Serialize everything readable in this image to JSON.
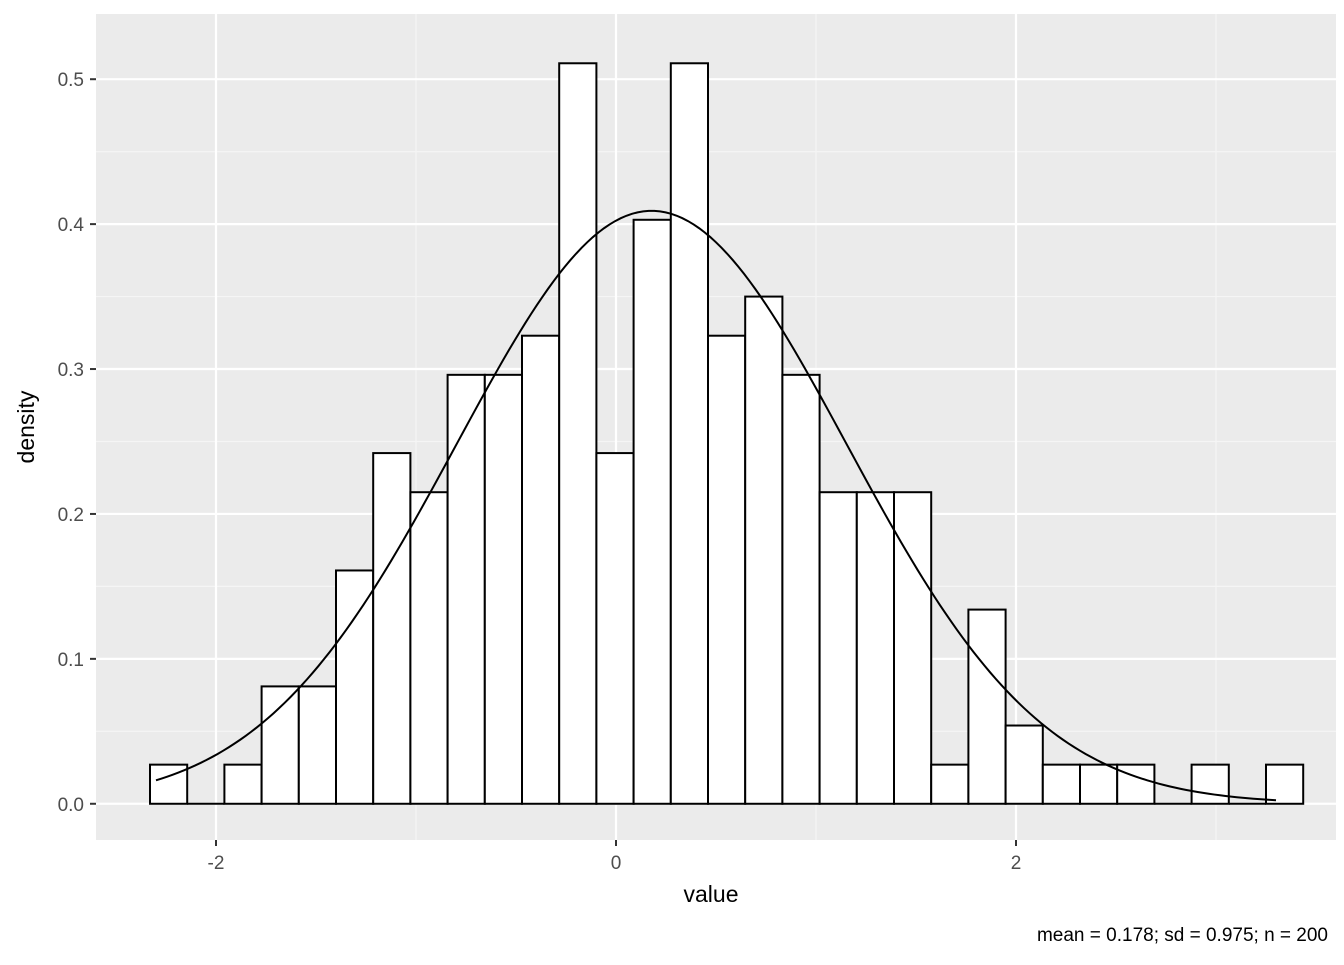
{
  "chart_data": {
    "type": "bar",
    "subtype": "histogram-with-density-curve",
    "xlabel": "value",
    "ylabel": "density",
    "caption": "mean = 0.178; sd = 0.975; n = 200",
    "xlim": [
      -2.6,
      3.6
    ],
    "ylim": [
      -0.025,
      0.545
    ],
    "x_ticks": [
      -2,
      0,
      2
    ],
    "y_ticks": [
      0.0,
      0.1,
      0.2,
      0.3,
      0.4,
      0.5
    ],
    "x_tick_labels": [
      "-2",
      "0",
      "2"
    ],
    "y_tick_labels": [
      "0.0",
      "0.1",
      "0.2",
      "0.3",
      "0.4",
      "0.5"
    ],
    "grid": true,
    "bin_start": -2.33,
    "bin_width": 0.186,
    "bins": [
      {
        "x0": -2.33,
        "x1": -2.144,
        "density": 0.027
      },
      {
        "x0": -2.144,
        "x1": -1.958,
        "density": 0.0
      },
      {
        "x0": -1.958,
        "x1": -1.772,
        "density": 0.027
      },
      {
        "x0": -1.772,
        "x1": -1.586,
        "density": 0.081
      },
      {
        "x0": -1.586,
        "x1": -1.4,
        "density": 0.081
      },
      {
        "x0": -1.4,
        "x1": -1.214,
        "density": 0.161
      },
      {
        "x0": -1.214,
        "x1": -1.028,
        "density": 0.242
      },
      {
        "x0": -1.028,
        "x1": -0.842,
        "density": 0.215
      },
      {
        "x0": -0.842,
        "x1": -0.656,
        "density": 0.296
      },
      {
        "x0": -0.656,
        "x1": -0.47,
        "density": 0.296
      },
      {
        "x0": -0.47,
        "x1": -0.284,
        "density": 0.323
      },
      {
        "x0": -0.284,
        "x1": -0.098,
        "density": 0.511
      },
      {
        "x0": -0.098,
        "x1": 0.088,
        "density": 0.242
      },
      {
        "x0": 0.088,
        "x1": 0.274,
        "density": 0.403
      },
      {
        "x0": 0.274,
        "x1": 0.46,
        "density": 0.511
      },
      {
        "x0": 0.46,
        "x1": 0.646,
        "density": 0.323
      },
      {
        "x0": 0.646,
        "x1": 0.832,
        "density": 0.35
      },
      {
        "x0": 0.832,
        "x1": 1.018,
        "density": 0.296
      },
      {
        "x0": 1.018,
        "x1": 1.204,
        "density": 0.215
      },
      {
        "x0": 1.204,
        "x1": 1.39,
        "density": 0.215
      },
      {
        "x0": 1.39,
        "x1": 1.576,
        "density": 0.215
      },
      {
        "x0": 1.576,
        "x1": 1.762,
        "density": 0.027
      },
      {
        "x0": 1.762,
        "x1": 1.948,
        "density": 0.134
      },
      {
        "x0": 1.948,
        "x1": 2.134,
        "density": 0.054
      },
      {
        "x0": 2.134,
        "x1": 2.32,
        "density": 0.027
      },
      {
        "x0": 2.32,
        "x1": 2.506,
        "density": 0.027
      },
      {
        "x0": 2.506,
        "x1": 2.692,
        "density": 0.027
      },
      {
        "x0": 2.692,
        "x1": 2.878,
        "density": 0.0
      },
      {
        "x0": 2.878,
        "x1": 3.064,
        "density": 0.027
      },
      {
        "x0": 3.064,
        "x1": 3.25,
        "density": 0.0
      },
      {
        "x0": 3.25,
        "x1": 3.436,
        "density": 0.027
      }
    ],
    "density_curve": {
      "distribution": "normal",
      "mean": 0.178,
      "sd": 0.975,
      "x_range": [
        -2.3,
        3.3
      ]
    },
    "colors": {
      "panel_background": "#ebebeb",
      "grid_major": "#ffffff",
      "grid_minor": "#f5f5f5",
      "bar_fill": "#ffffff",
      "bar_outline": "#000000",
      "curve": "#000000",
      "tick_text": "#4d4d4d",
      "axis_title": "#000000"
    }
  }
}
